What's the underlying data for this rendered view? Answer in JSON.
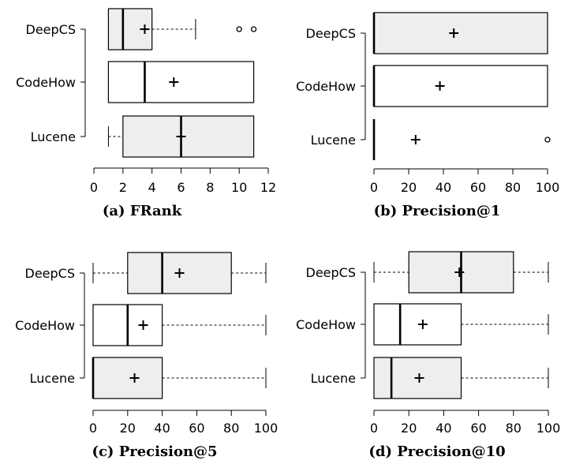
{
  "colors": {
    "box_fill_shaded": "#eeeeee",
    "box_fill_plain": "#ffffff",
    "stroke": "#000000"
  },
  "chart_data": [
    {
      "type": "boxplot",
      "title": "(a) FRank",
      "xlim": [
        0,
        12
      ],
      "xticks": [
        0,
        2,
        4,
        6,
        8,
        10,
        12
      ],
      "categories": [
        "DeepCS",
        "CodeHow",
        "Lucene"
      ],
      "boxes": [
        {
          "name": "DeepCS",
          "whisker_low": 1,
          "q1": 1,
          "median": 2,
          "q3": 4,
          "whisker_high": 7,
          "mean": 3.5,
          "outliers": [
            10,
            11
          ],
          "shaded": true
        },
        {
          "name": "CodeHow",
          "whisker_low": 1,
          "q1": 1,
          "median": 3.5,
          "q3": 11,
          "whisker_high": 11,
          "mean": 5.5,
          "outliers": [],
          "shaded": false
        },
        {
          "name": "Lucene",
          "whisker_low": 1,
          "q1": 2,
          "median": 6,
          "q3": 11,
          "whisker_high": 11,
          "mean": 6,
          "outliers": [],
          "shaded": true
        }
      ]
    },
    {
      "type": "boxplot",
      "title": "(b) Precision@1",
      "xlim": [
        0,
        100
      ],
      "xticks": [
        0,
        20,
        40,
        60,
        80,
        100
      ],
      "categories": [
        "DeepCS",
        "CodeHow",
        "Lucene"
      ],
      "boxes": [
        {
          "name": "DeepCS",
          "whisker_low": 0,
          "q1": 0,
          "median": 0,
          "q3": 100,
          "whisker_high": 100,
          "mean": 46,
          "outliers": [],
          "shaded": true
        },
        {
          "name": "CodeHow",
          "whisker_low": 0,
          "q1": 0,
          "median": 0,
          "q3": 100,
          "whisker_high": 100,
          "mean": 38,
          "outliers": [],
          "shaded": false
        },
        {
          "name": "Lucene",
          "whisker_low": 0,
          "q1": 0,
          "median": 0,
          "q3": 0,
          "whisker_high": 0,
          "mean": 24,
          "outliers": [
            100
          ],
          "shaded": true
        }
      ]
    },
    {
      "type": "boxplot",
      "title": "(c) Precision@5",
      "xlim": [
        0,
        100
      ],
      "xticks": [
        0,
        20,
        40,
        60,
        80,
        100
      ],
      "categories": [
        "DeepCS",
        "CodeHow",
        "Lucene"
      ],
      "boxes": [
        {
          "name": "DeepCS",
          "whisker_low": 0,
          "q1": 20,
          "median": 40,
          "q3": 80,
          "whisker_high": 100,
          "mean": 50,
          "outliers": [],
          "shaded": true
        },
        {
          "name": "CodeHow",
          "whisker_low": 0,
          "q1": 0,
          "median": 20,
          "q3": 40,
          "whisker_high": 100,
          "mean": 29,
          "outliers": [],
          "shaded": false
        },
        {
          "name": "Lucene",
          "whisker_low": 0,
          "q1": 0,
          "median": 0,
          "q3": 40,
          "whisker_high": 100,
          "mean": 24,
          "outliers": [],
          "shaded": true
        }
      ]
    },
    {
      "type": "boxplot",
      "title": "(d) Precision@10",
      "xlim": [
        0,
        100
      ],
      "xticks": [
        0,
        20,
        40,
        60,
        80,
        100
      ],
      "categories": [
        "DeepCS",
        "CodeHow",
        "Lucene"
      ],
      "boxes": [
        {
          "name": "DeepCS",
          "whisker_low": 0,
          "q1": 20,
          "median": 50,
          "q3": 80,
          "whisker_high": 100,
          "mean": 49,
          "outliers": [],
          "shaded": true
        },
        {
          "name": "CodeHow",
          "whisker_low": 0,
          "q1": 0,
          "median": 15,
          "q3": 50,
          "whisker_high": 100,
          "mean": 28,
          "outliers": [],
          "shaded": false
        },
        {
          "name": "Lucene",
          "whisker_low": 0,
          "q1": 0,
          "median": 10,
          "q3": 50,
          "whisker_high": 100,
          "mean": 26,
          "outliers": [],
          "shaded": true
        }
      ]
    }
  ]
}
